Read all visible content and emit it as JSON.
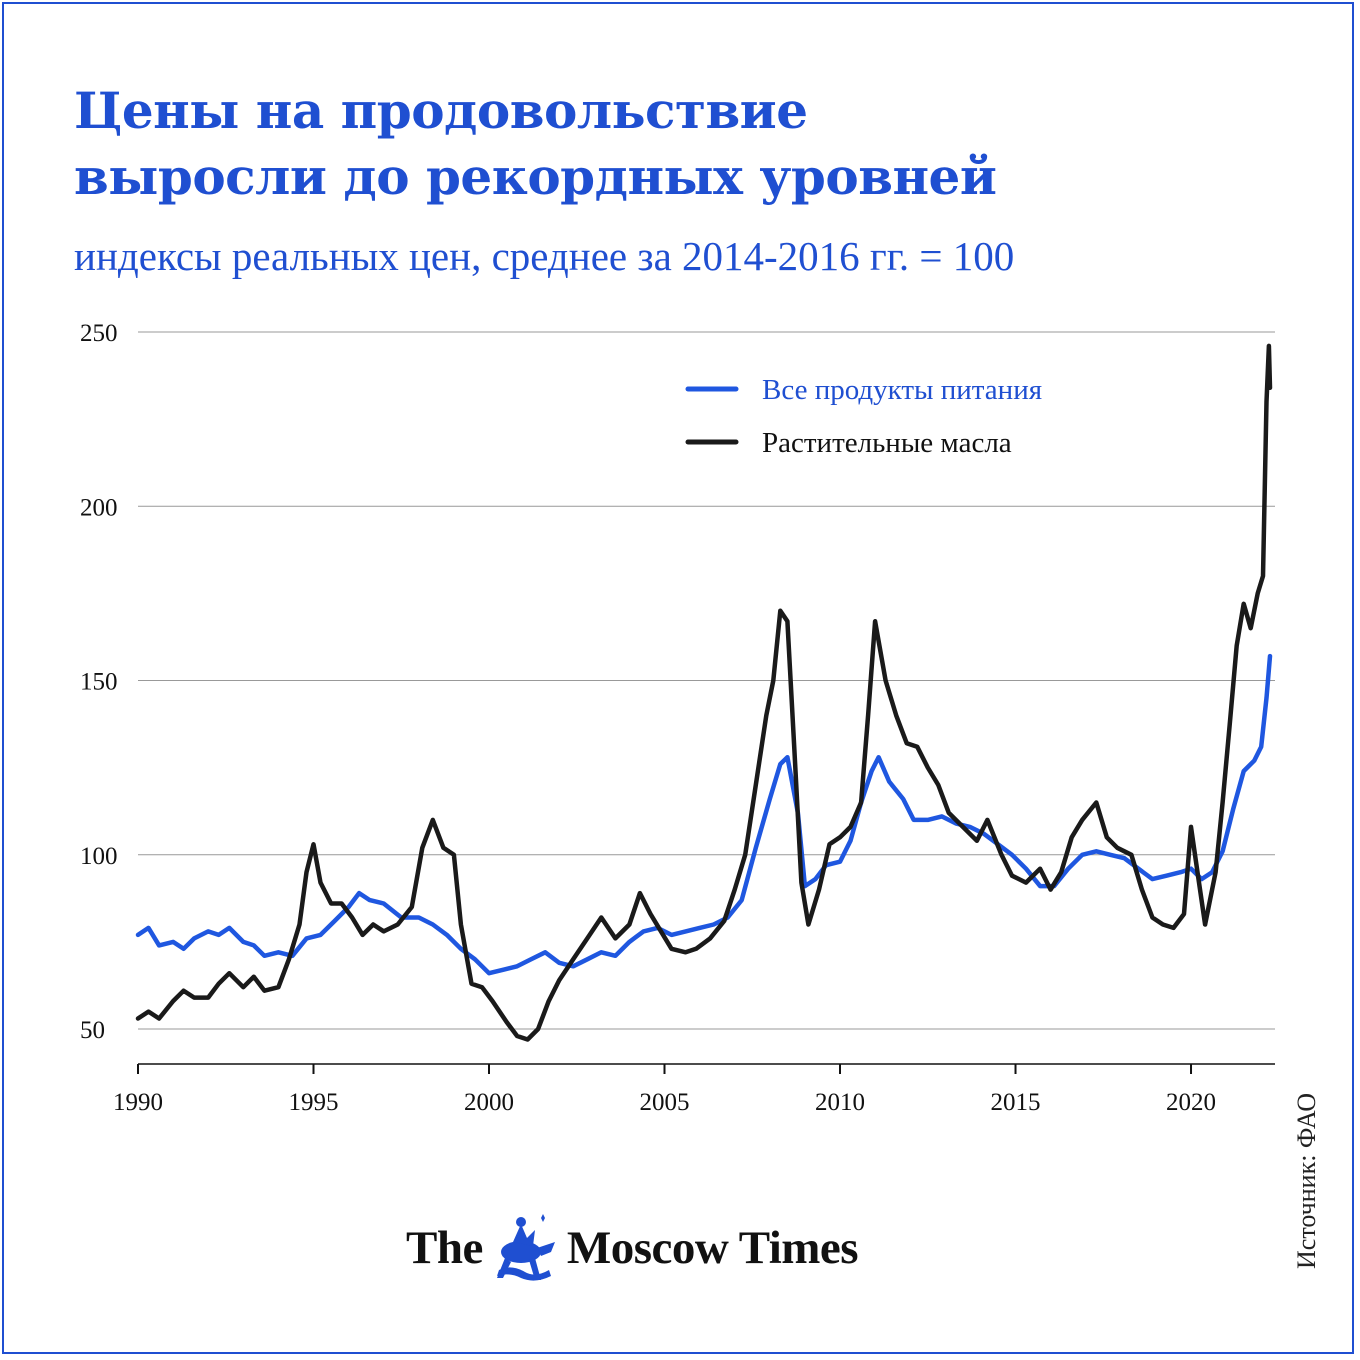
{
  "title_lines": [
    "Цены на продовольствие",
    "выросли до рекордных уровней"
  ],
  "subtitle": "индексы реальных цен, среднее за 2014-2016 гг. = 100",
  "source": "Источник: ФАО",
  "brand": {
    "left": "The",
    "right": "Moscow Times",
    "emblem_icon": "st-george-emblem-icon"
  },
  "colors": {
    "accent": "#1f4fd1",
    "food": "#1f57e0",
    "oils": "#1a1a1a",
    "grid": "#999999"
  },
  "chart_data": {
    "type": "line",
    "title": "Цены на продовольствие выросли до рекордных уровней",
    "subtitle": "индексы реальных цен, среднее за 2014-2016 гг. = 100",
    "xlim": [
      1990,
      2022.25
    ],
    "ylim": [
      40,
      250
    ],
    "y_ticks": [
      50,
      100,
      150,
      200,
      250
    ],
    "x_ticks": [
      1990,
      1995,
      2000,
      2005,
      2010,
      2015,
      2020
    ],
    "grid": "horizontal",
    "legend_position": "top-right",
    "series": [
      {
        "name": "Все продукты питания",
        "color": "#1f57e0",
        "points": [
          [
            1990,
            77
          ],
          [
            1990.3,
            79
          ],
          [
            1990.6,
            74
          ],
          [
            1991,
            75
          ],
          [
            1991.3,
            73
          ],
          [
            1991.6,
            76
          ],
          [
            1992,
            78
          ],
          [
            1992.3,
            77
          ],
          [
            1992.6,
            79
          ],
          [
            1993,
            75
          ],
          [
            1993.3,
            74
          ],
          [
            1993.6,
            71
          ],
          [
            1994,
            72
          ],
          [
            1994.4,
            71
          ],
          [
            1994.8,
            76
          ],
          [
            1995.2,
            77
          ],
          [
            1995.6,
            81
          ],
          [
            1996,
            85
          ],
          [
            1996.3,
            89
          ],
          [
            1996.6,
            87
          ],
          [
            1997,
            86
          ],
          [
            1997.5,
            82
          ],
          [
            1998,
            82
          ],
          [
            1998.4,
            80
          ],
          [
            1998.8,
            77
          ],
          [
            1999.2,
            73
          ],
          [
            1999.6,
            70
          ],
          [
            2000,
            66
          ],
          [
            2000.4,
            67
          ],
          [
            2000.8,
            68
          ],
          [
            2001.2,
            70
          ],
          [
            2001.6,
            72
          ],
          [
            2002,
            69
          ],
          [
            2002.4,
            68
          ],
          [
            2002.8,
            70
          ],
          [
            2003.2,
            72
          ],
          [
            2003.6,
            71
          ],
          [
            2004,
            75
          ],
          [
            2004.4,
            78
          ],
          [
            2004.8,
            79
          ],
          [
            2005.2,
            77
          ],
          [
            2005.6,
            78
          ],
          [
            2006,
            79
          ],
          [
            2006.4,
            80
          ],
          [
            2006.8,
            82
          ],
          [
            2007.2,
            87
          ],
          [
            2007.6,
            102
          ],
          [
            2008,
            116
          ],
          [
            2008.3,
            126
          ],
          [
            2008.5,
            128
          ],
          [
            2008.8,
            112
          ],
          [
            2009,
            91
          ],
          [
            2009.3,
            93
          ],
          [
            2009.6,
            97
          ],
          [
            2010,
            98
          ],
          [
            2010.3,
            104
          ],
          [
            2010.6,
            115
          ],
          [
            2010.9,
            124
          ],
          [
            2011.1,
            128
          ],
          [
            2011.4,
            121
          ],
          [
            2011.8,
            116
          ],
          [
            2012.1,
            110
          ],
          [
            2012.5,
            110
          ],
          [
            2012.9,
            111
          ],
          [
            2013.3,
            109
          ],
          [
            2013.7,
            108
          ],
          [
            2014.1,
            106
          ],
          [
            2014.5,
            103
          ],
          [
            2014.9,
            100
          ],
          [
            2015.3,
            96
          ],
          [
            2015.7,
            91
          ],
          [
            2016.1,
            91
          ],
          [
            2016.5,
            96
          ],
          [
            2016.9,
            100
          ],
          [
            2017.3,
            101
          ],
          [
            2017.7,
            100
          ],
          [
            2018.1,
            99
          ],
          [
            2018.5,
            96
          ],
          [
            2018.9,
            93
          ],
          [
            2019.3,
            94
          ],
          [
            2019.7,
            95
          ],
          [
            2020,
            96
          ],
          [
            2020.3,
            93
          ],
          [
            2020.6,
            95
          ],
          [
            2020.9,
            101
          ],
          [
            2021.2,
            113
          ],
          [
            2021.5,
            124
          ],
          [
            2021.8,
            127
          ],
          [
            2022,
            131
          ],
          [
            2022.15,
            145
          ],
          [
            2022.25,
            157
          ]
        ]
      },
      {
        "name": "Растительные масла",
        "color": "#1a1a1a",
        "points": [
          [
            1990,
            53
          ],
          [
            1990.3,
            55
          ],
          [
            1990.6,
            53
          ],
          [
            1991,
            58
          ],
          [
            1991.3,
            61
          ],
          [
            1991.6,
            59
          ],
          [
            1992,
            59
          ],
          [
            1992.3,
            63
          ],
          [
            1992.6,
            66
          ],
          [
            1993,
            62
          ],
          [
            1993.3,
            65
          ],
          [
            1993.6,
            61
          ],
          [
            1994,
            62
          ],
          [
            1994.3,
            70
          ],
          [
            1994.6,
            80
          ],
          [
            1994.8,
            95
          ],
          [
            1995,
            103
          ],
          [
            1995.2,
            92
          ],
          [
            1995.5,
            86
          ],
          [
            1995.8,
            86
          ],
          [
            1996.1,
            82
          ],
          [
            1996.4,
            77
          ],
          [
            1996.7,
            80
          ],
          [
            1997,
            78
          ],
          [
            1997.4,
            80
          ],
          [
            1997.8,
            85
          ],
          [
            1998.1,
            102
          ],
          [
            1998.4,
            110
          ],
          [
            1998.7,
            102
          ],
          [
            1999,
            100
          ],
          [
            1999.2,
            80
          ],
          [
            1999.5,
            63
          ],
          [
            1999.8,
            62
          ],
          [
            2000.1,
            58
          ],
          [
            2000.5,
            52
          ],
          [
            2000.8,
            48
          ],
          [
            2001.1,
            47
          ],
          [
            2001.4,
            50
          ],
          [
            2001.7,
            58
          ],
          [
            2002,
            64
          ],
          [
            2002.4,
            70
          ],
          [
            2002.8,
            76
          ],
          [
            2003.2,
            82
          ],
          [
            2003.6,
            76
          ],
          [
            2004,
            80
          ],
          [
            2004.3,
            89
          ],
          [
            2004.6,
            83
          ],
          [
            2004.9,
            78
          ],
          [
            2005.2,
            73
          ],
          [
            2005.6,
            72
          ],
          [
            2005.9,
            73
          ],
          [
            2006.3,
            76
          ],
          [
            2006.7,
            81
          ],
          [
            2007,
            90
          ],
          [
            2007.3,
            100
          ],
          [
            2007.6,
            120
          ],
          [
            2007.9,
            140
          ],
          [
            2008.1,
            150
          ],
          [
            2008.3,
            170
          ],
          [
            2008.5,
            167
          ],
          [
            2008.7,
            130
          ],
          [
            2008.9,
            92
          ],
          [
            2009.1,
            80
          ],
          [
            2009.4,
            90
          ],
          [
            2009.7,
            103
          ],
          [
            2010,
            105
          ],
          [
            2010.3,
            108
          ],
          [
            2010.6,
            115
          ],
          [
            2010.8,
            140
          ],
          [
            2011,
            167
          ],
          [
            2011.3,
            150
          ],
          [
            2011.6,
            140
          ],
          [
            2011.9,
            132
          ],
          [
            2012.2,
            131
          ],
          [
            2012.5,
            125
          ],
          [
            2012.8,
            120
          ],
          [
            2013.1,
            112
          ],
          [
            2013.5,
            108
          ],
          [
            2013.9,
            104
          ],
          [
            2014.2,
            110
          ],
          [
            2014.6,
            100
          ],
          [
            2014.9,
            94
          ],
          [
            2015.3,
            92
          ],
          [
            2015.7,
            96
          ],
          [
            2016,
            90
          ],
          [
            2016.3,
            95
          ],
          [
            2016.6,
            105
          ],
          [
            2016.9,
            110
          ],
          [
            2017.3,
            115
          ],
          [
            2017.6,
            105
          ],
          [
            2017.9,
            102
          ],
          [
            2018.3,
            100
          ],
          [
            2018.6,
            90
          ],
          [
            2018.9,
            82
          ],
          [
            2019.2,
            80
          ],
          [
            2019.5,
            79
          ],
          [
            2019.8,
            83
          ],
          [
            2020,
            108
          ],
          [
            2020.2,
            94
          ],
          [
            2020.4,
            80
          ],
          [
            2020.7,
            95
          ],
          [
            2020.9,
            115
          ],
          [
            2021.1,
            137
          ],
          [
            2021.3,
            160
          ],
          [
            2021.5,
            172
          ],
          [
            2021.7,
            165
          ],
          [
            2021.9,
            175
          ],
          [
            2022.05,
            180
          ],
          [
            2022.15,
            230
          ],
          [
            2022.22,
            246
          ],
          [
            2022.25,
            234
          ]
        ]
      }
    ]
  }
}
